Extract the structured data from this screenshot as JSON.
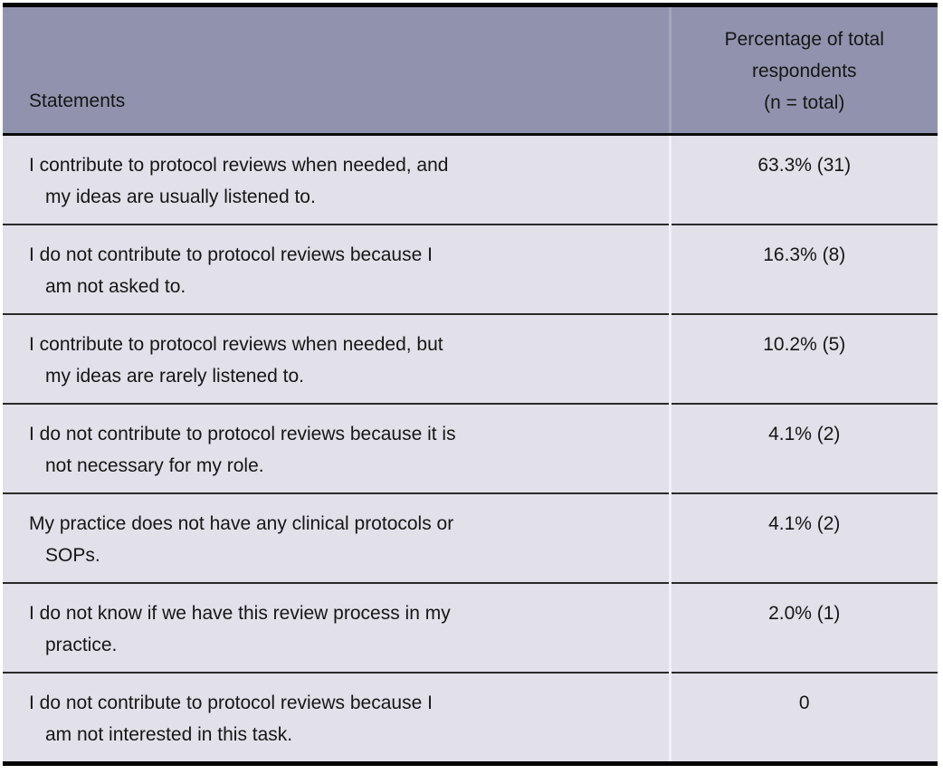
{
  "table": {
    "title_semantic": "survey-responses-protocol-review-contribution",
    "columns": {
      "statements_header": "Statements",
      "percentage_header": "Percentage of total\nrespondents\n(n = total)"
    },
    "rows": [
      {
        "statement": "I contribute to protocol reviews when needed, and\nmy ideas are usually listened to.",
        "value": "63.3% (31)"
      },
      {
        "statement": "I do not contribute to protocol reviews because I\nam not asked to.",
        "value": "16.3% (8)"
      },
      {
        "statement": "I contribute to protocol reviews when needed, but\nmy ideas are rarely listened to.",
        "value": "10.2% (5)"
      },
      {
        "statement": "I do not contribute to protocol reviews because it is\nnot necessary for my role.",
        "value": "4.1% (2)"
      },
      {
        "statement": "My practice does not have any clinical protocols or\nSOPs.",
        "value": "4.1% (2)"
      },
      {
        "statement": "I do not know if we have this review process in my\npractice.",
        "value": "2.0% (1)"
      },
      {
        "statement": "I do not contribute to protocol reviews because I\nam not interested in this task.",
        "value": "0"
      }
    ],
    "colors": {
      "header_background": "#9193ae",
      "row_background": "#e2e0e9",
      "outer_border": "#050505",
      "row_separator": "#2a2a2a",
      "column_divider_header": "#a4a5bb",
      "column_divider_body": "#f1f0f6",
      "text": "#161616"
    }
  }
}
